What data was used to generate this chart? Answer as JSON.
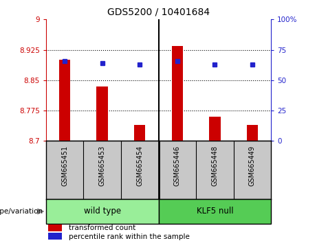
{
  "title": "GDS5200 / 10401684",
  "categories": [
    "GSM665451",
    "GSM665453",
    "GSM665454",
    "GSM665446",
    "GSM665448",
    "GSM665449"
  ],
  "bar_values": [
    8.9,
    8.835,
    8.74,
    8.935,
    8.76,
    8.74
  ],
  "percentile_values": [
    66,
    64,
    63,
    66,
    63,
    63
  ],
  "ylim_left": [
    8.7,
    9.0
  ],
  "ylim_right": [
    0,
    100
  ],
  "yticks_left": [
    8.7,
    8.775,
    8.85,
    8.925,
    9.0
  ],
  "ytick_labels_left": [
    "8.7",
    "8.775",
    "8.85",
    "8.925",
    "9"
  ],
  "yticks_right": [
    0,
    25,
    50,
    75,
    100
  ],
  "ytick_labels_right": [
    "0",
    "25",
    "50",
    "75",
    "100%"
  ],
  "bar_color": "#cc0000",
  "dot_color": "#2222cc",
  "bar_bottom": 8.7,
  "wild_type_label": "wild type",
  "klf5_label": "KLF5 null",
  "genotype_label": "genotype/variation",
  "legend_bar_label": "transformed count",
  "legend_dot_label": "percentile rank within the sample",
  "wild_type_color": "#99ee99",
  "klf5_color": "#55cc55",
  "group_bg_color": "#c8c8c8",
  "plot_bg_color": "#ffffff",
  "bar_width": 0.3,
  "n_categories": 6,
  "wild_type_count": 3,
  "klf5_count": 3
}
